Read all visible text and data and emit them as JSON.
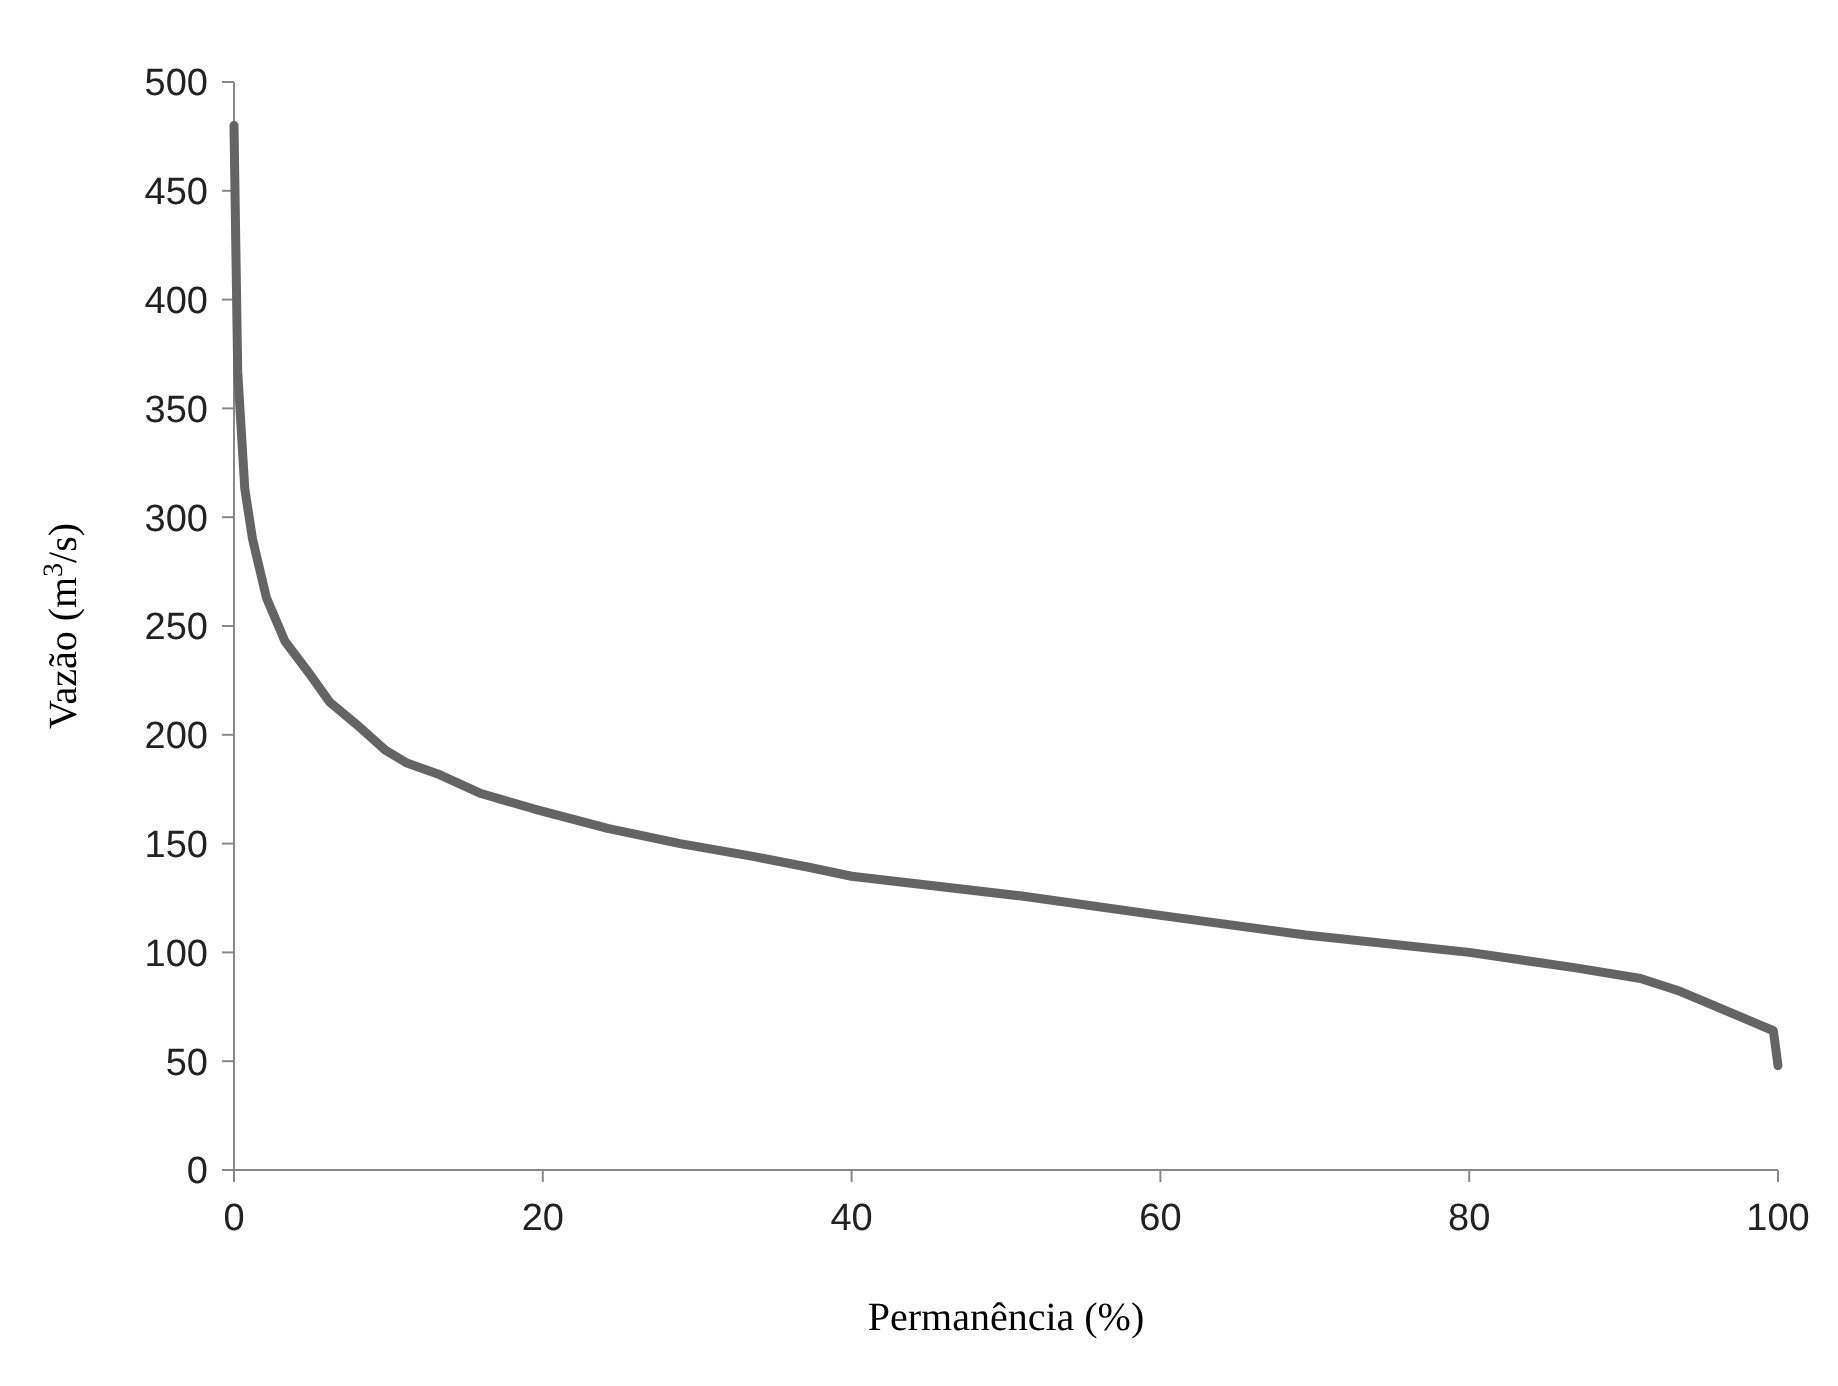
{
  "chart_data": {
    "type": "line",
    "xlabel": "Permanência (%)",
    "ylabel": "Vazão (m$^{3}$/s)",
    "series": [
      {
        "color": "#646464",
        "x": [
          0,
          0.24,
          0.7,
          1.2,
          2.1,
          3.3,
          5,
          6.2,
          7.9,
          9.8,
          11.2,
          13.2,
          16,
          19.4,
          24.2,
          28.9,
          33.7,
          37.3,
          40,
          50.9,
          60,
          69.4,
          80,
          86.8,
          91.1,
          93.7,
          97.7,
          99.7,
          100
        ],
        "values": [
          480,
          367,
          313,
          290,
          263,
          243,
          227,
          215,
          205,
          193,
          187,
          182,
          173,
          166,
          157,
          150,
          144,
          139,
          135,
          126,
          117,
          108,
          100,
          93,
          88,
          82,
          70,
          64,
          48
        ]
      }
    ],
    "xlim": [
      0,
      100
    ],
    "xticks": [
      0,
      20,
      40,
      60,
      80,
      100
    ],
    "ylim": [
      0,
      500
    ],
    "yticks": [
      0,
      50,
      100,
      150,
      200,
      250,
      300,
      350,
      400,
      450,
      500
    ],
    "marker": "none",
    "line_style": "solid"
  }
}
